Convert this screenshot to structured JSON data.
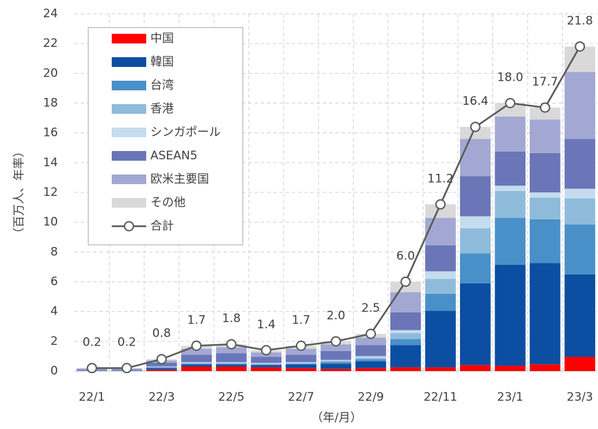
{
  "chart_data": {
    "type": "stacked_bar_line",
    "y_label": "（百万人、年率）",
    "x_label": "（年/月）",
    "categories": [
      "22/1",
      null,
      "22/3",
      null,
      "22/5",
      null,
      "22/7",
      null,
      "22/9",
      null,
      "22/11",
      null,
      "23/1",
      null,
      "23/3"
    ],
    "ylim": [
      0,
      24
    ],
    "yticks": [
      0,
      2,
      4,
      6,
      8,
      10,
      12,
      14,
      16,
      18,
      20,
      22,
      24
    ],
    "grid": true,
    "legend": "upper left",
    "series": [
      {
        "name": "中国",
        "color": "#ff0000",
        "values": [
          0.01,
          0.01,
          0.1,
          0.3,
          0.3,
          0.25,
          0.2,
          0.15,
          0.2,
          0.25,
          0.25,
          0.4,
          0.35,
          0.45,
          0.95
        ]
      },
      {
        "name": "韓国",
        "color": "#0b4ea2",
        "values": [
          0.02,
          0.02,
          0.1,
          0.15,
          0.15,
          0.15,
          0.25,
          0.35,
          0.45,
          1.5,
          3.8,
          5.5,
          6.8,
          6.8,
          5.55
        ]
      },
      {
        "name": "台湾",
        "color": "#4a90c8",
        "values": [
          0.01,
          0.01,
          0.05,
          0.05,
          0.05,
          0.05,
          0.05,
          0.1,
          0.15,
          0.4,
          1.15,
          2.0,
          3.15,
          2.95,
          3.35
        ]
      },
      {
        "name": "香港",
        "color": "#8fbbdb",
        "values": [
          0.01,
          0.01,
          0.03,
          0.05,
          0.05,
          0.05,
          0.05,
          0.1,
          0.1,
          0.4,
          1.0,
          1.7,
          1.8,
          1.45,
          1.75
        ]
      },
      {
        "name": "シンガポール",
        "color": "#c5dcee",
        "values": [
          0.01,
          0.01,
          0.03,
          0.05,
          0.05,
          0.05,
          0.05,
          0.05,
          0.1,
          0.2,
          0.5,
          0.8,
          0.35,
          0.35,
          0.65
        ]
      },
      {
        "name": "ASEAN5",
        "color": "#6a76b8",
        "values": [
          0.06,
          0.06,
          0.25,
          0.5,
          0.6,
          0.4,
          0.5,
          0.6,
          0.75,
          1.2,
          1.75,
          2.7,
          2.3,
          2.65,
          3.35
        ]
      },
      {
        "name": "欧米主要国",
        "color": "#a3a8d3",
        "values": [
          0.05,
          0.05,
          0.15,
          0.4,
          0.4,
          0.3,
          0.4,
          0.45,
          0.5,
          1.35,
          1.85,
          2.5,
          2.35,
          2.25,
          4.5
        ]
      },
      {
        "name": "その他",
        "color": "#d9d9d9",
        "values": [
          0.03,
          0.03,
          0.09,
          0.2,
          0.2,
          0.15,
          0.2,
          0.2,
          0.25,
          0.7,
          0.9,
          0.8,
          0.9,
          0.8,
          1.7
        ]
      }
    ],
    "line": {
      "name": "合計",
      "color": "#595959",
      "values": [
        0.2,
        0.2,
        0.8,
        1.7,
        1.8,
        1.4,
        1.7,
        2.0,
        2.5,
        6.0,
        11.2,
        16.4,
        18.0,
        17.7,
        21.8
      ],
      "value_labels": [
        "0.2",
        "0.2",
        "0.8",
        "1.7",
        "1.8",
        "1.4",
        "1.7",
        "2.0",
        "2.5",
        "6.0",
        "11.2",
        "16.4",
        "18.0",
        "17.7",
        "21.8"
      ]
    }
  }
}
